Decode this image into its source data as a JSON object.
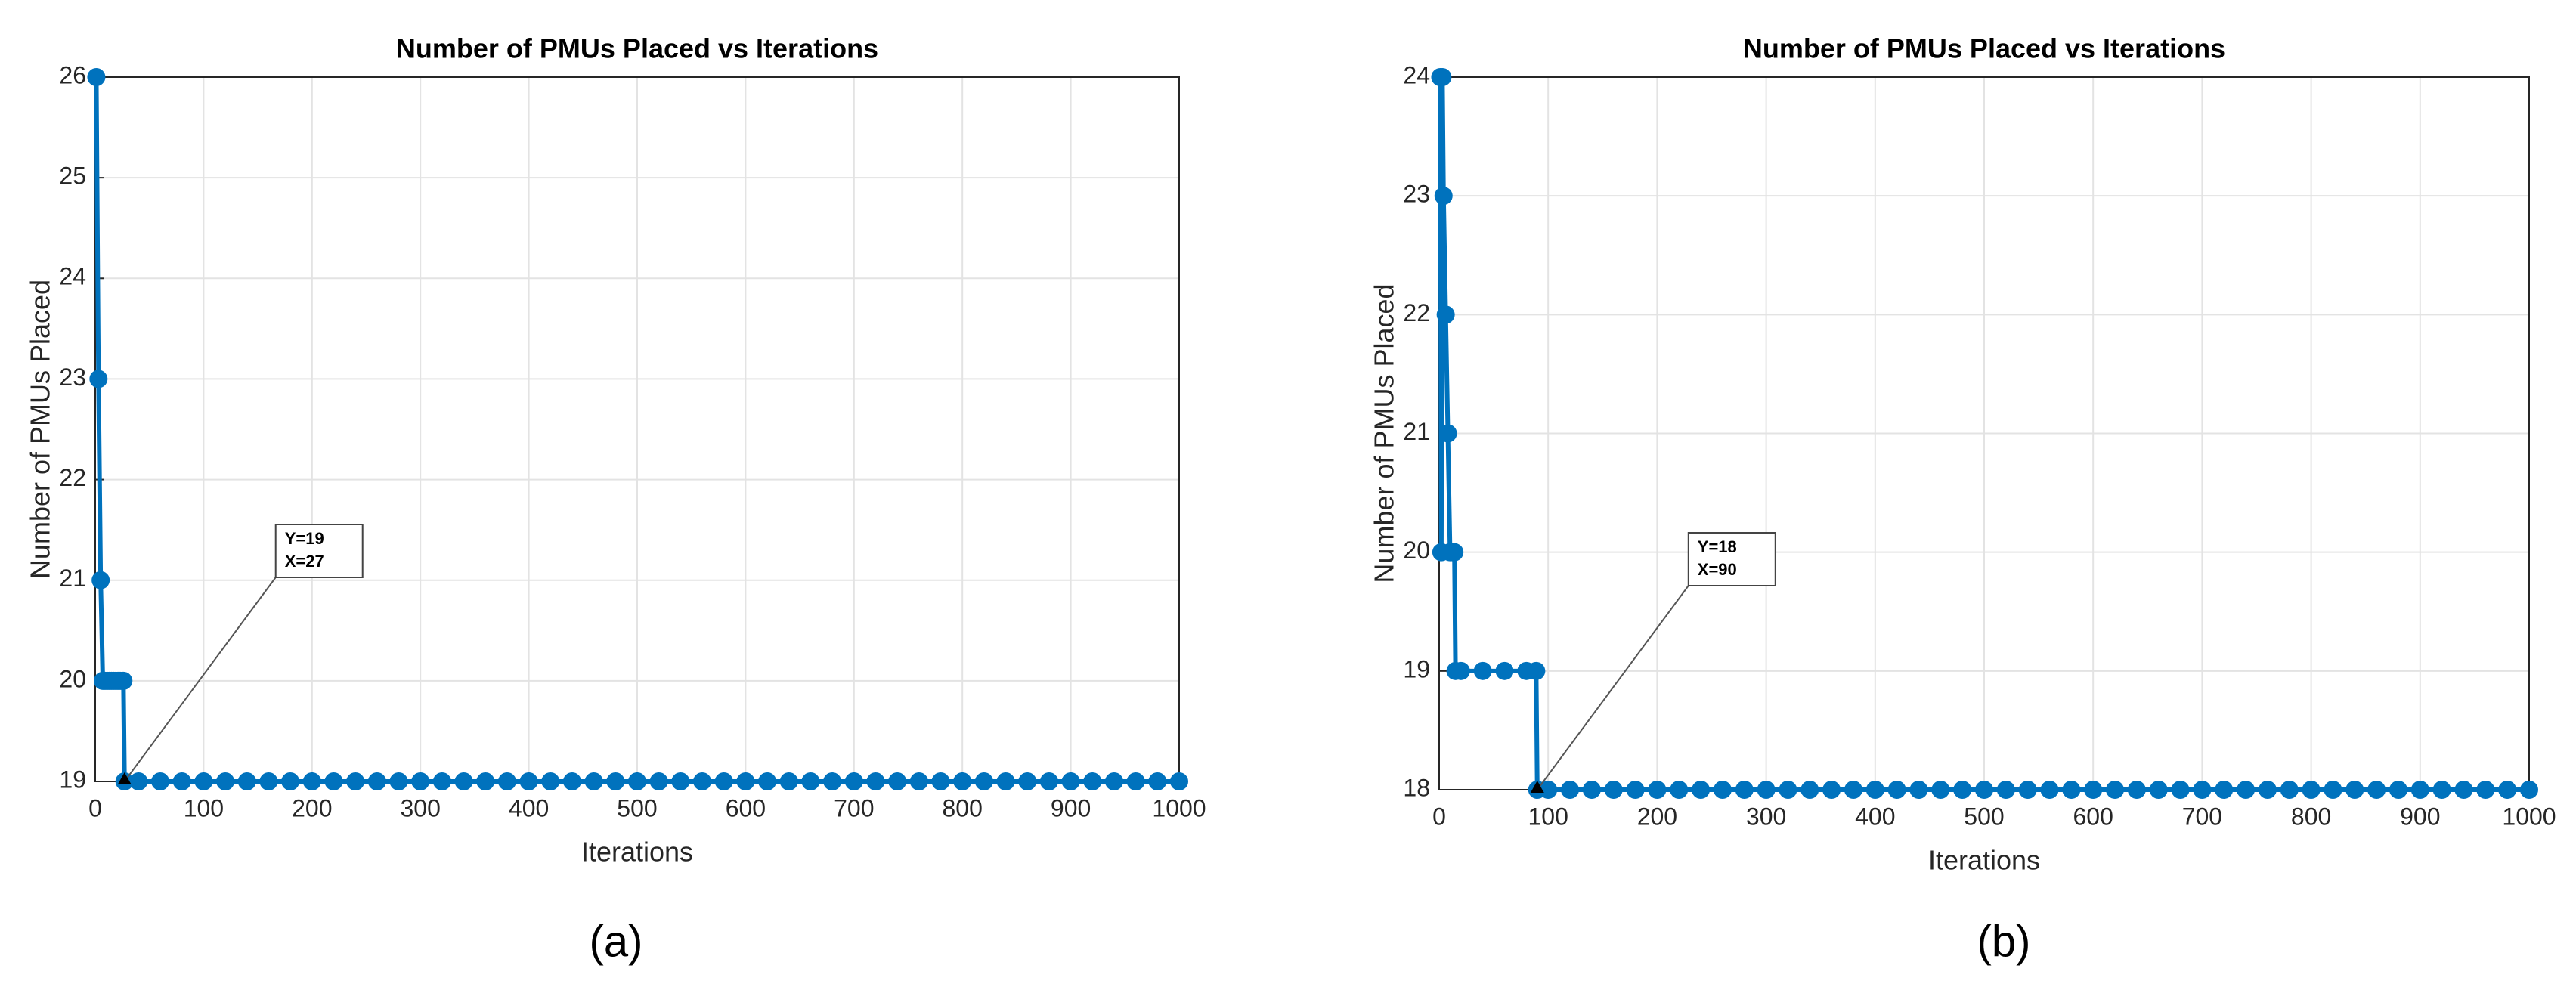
{
  "chart_data": [
    {
      "type": "line",
      "title": "Number of PMUs Placed vs Iterations",
      "xlabel": "Iterations",
      "ylabel": "Number of PMUs Placed",
      "caption": "(a)",
      "x": [
        1,
        3,
        5,
        7,
        9,
        11,
        13,
        15,
        17,
        19,
        21,
        23,
        25,
        26,
        27,
        40,
        60,
        80,
        100,
        120,
        140,
        160,
        180,
        200,
        220,
        240,
        260,
        280,
        300,
        320,
        340,
        360,
        380,
        400,
        420,
        440,
        460,
        480,
        500,
        520,
        540,
        560,
        580,
        600,
        620,
        640,
        660,
        680,
        700,
        720,
        740,
        760,
        780,
        800,
        820,
        840,
        860,
        880,
        900,
        920,
        940,
        960,
        980,
        1000
      ],
      "values": [
        26,
        23,
        21,
        20,
        20,
        20,
        20,
        20,
        20,
        20,
        20,
        20,
        20,
        20,
        19,
        19,
        19,
        19,
        19,
        19,
        19,
        19,
        19,
        19,
        19,
        19,
        19,
        19,
        19,
        19,
        19,
        19,
        19,
        19,
        19,
        19,
        19,
        19,
        19,
        19,
        19,
        19,
        19,
        19,
        19,
        19,
        19,
        19,
        19,
        19,
        19,
        19,
        19,
        19,
        19,
        19,
        19,
        19,
        19,
        19,
        19,
        19,
        19,
        19
      ],
      "color": "#0072bd",
      "xlim": [
        0,
        1000
      ],
      "ylim": [
        19,
        26
      ],
      "xticks": [
        0,
        100,
        200,
        300,
        400,
        500,
        600,
        700,
        800,
        900,
        1000
      ],
      "yticks": [
        19,
        20,
        21,
        22,
        23,
        24,
        25,
        26
      ],
      "grid": true,
      "annotation": {
        "lines": [
          "Y=19",
          "X=27"
        ],
        "x": 27,
        "y": 19
      }
    },
    {
      "type": "line",
      "title": "Number of PMUs Placed vs Iterations",
      "xlabel": "Iterations",
      "ylabel": "Number of PMUs Placed",
      "caption": "(b)",
      "x": [
        1,
        2,
        3,
        4,
        6,
        8,
        10,
        12,
        14,
        15,
        20,
        40,
        60,
        80,
        89,
        90,
        100,
        120,
        140,
        160,
        180,
        200,
        220,
        240,
        260,
        280,
        300,
        320,
        340,
        360,
        380,
        400,
        420,
        440,
        460,
        480,
        500,
        520,
        540,
        560,
        580,
        600,
        620,
        640,
        660,
        680,
        700,
        720,
        740,
        760,
        780,
        800,
        820,
        840,
        860,
        880,
        900,
        920,
        940,
        960,
        980,
        1000
      ],
      "values": [
        24,
        20,
        24,
        23,
        22,
        21,
        20,
        20,
        20,
        19,
        19,
        19,
        19,
        19,
        19,
        18,
        18,
        18,
        18,
        18,
        18,
        18,
        18,
        18,
        18,
        18,
        18,
        18,
        18,
        18,
        18,
        18,
        18,
        18,
        18,
        18,
        18,
        18,
        18,
        18,
        18,
        18,
        18,
        18,
        18,
        18,
        18,
        18,
        18,
        18,
        18,
        18,
        18,
        18,
        18,
        18,
        18,
        18,
        18,
        18,
        18,
        18
      ],
      "color": "#0072bd",
      "xlim": [
        0,
        1000
      ],
      "ylim": [
        18,
        24
      ],
      "xticks": [
        0,
        100,
        200,
        300,
        400,
        500,
        600,
        700,
        800,
        900,
        1000
      ],
      "yticks": [
        18,
        19,
        20,
        21,
        22,
        23,
        24
      ],
      "grid": true,
      "annotation": {
        "lines": [
          "Y=18",
          "X=90"
        ],
        "x": 90,
        "y": 18
      }
    }
  ]
}
